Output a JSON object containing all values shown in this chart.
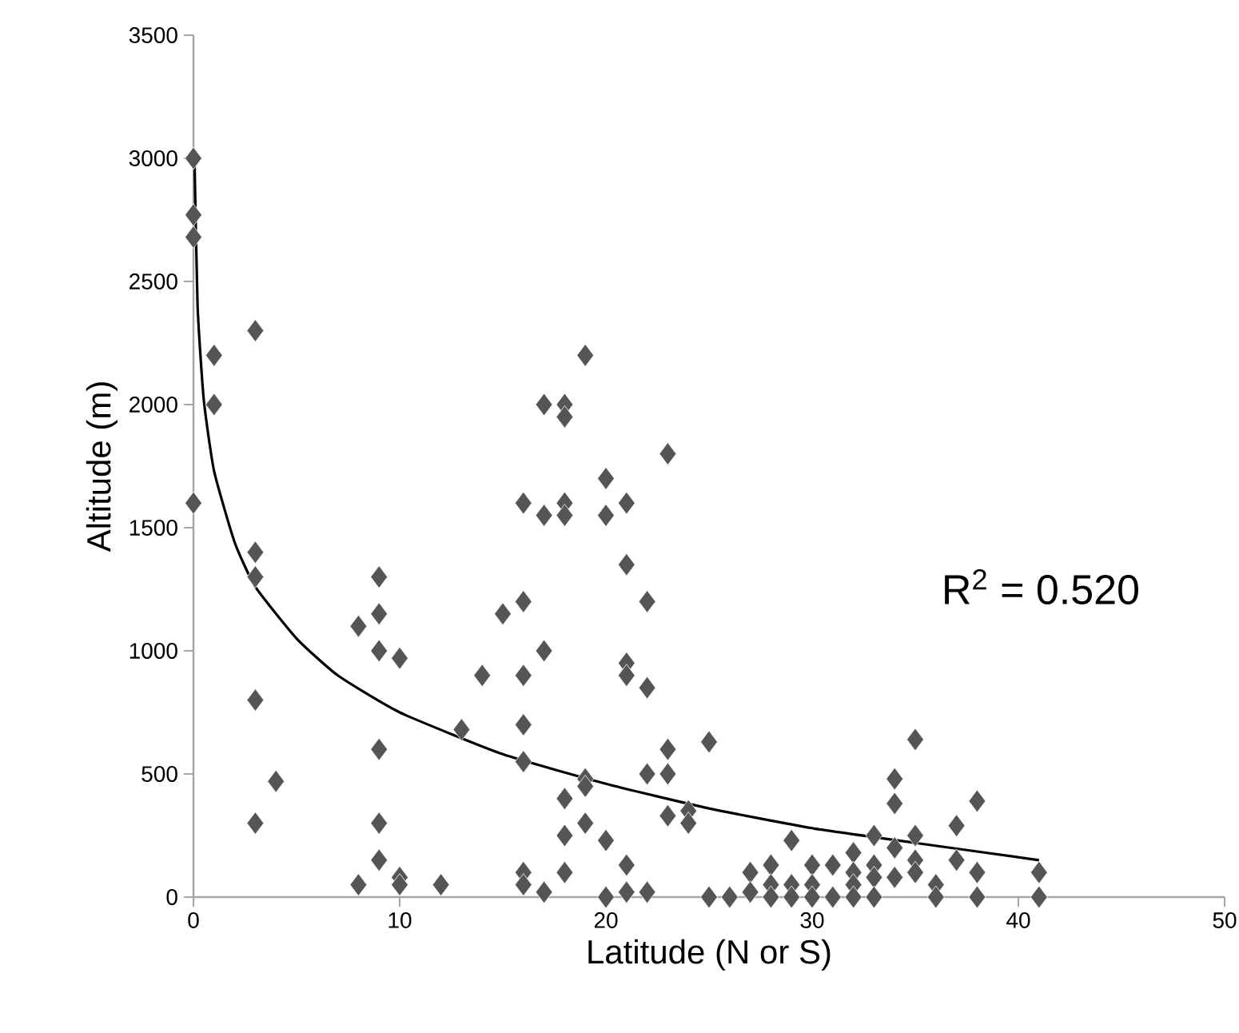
{
  "chart_data": {
    "type": "scatter",
    "xlabel": "Latitude (N or S)",
    "ylabel": "Altitude (m)",
    "annotations": [
      "R$^{2}$ = 0.520"
    ],
    "xlim": [
      0,
      50
    ],
    "xticks": [
      0,
      10,
      20,
      30,
      40,
      50
    ],
    "ylim": [
      0,
      3500
    ],
    "yticks": [
      0,
      500,
      1000,
      1500,
      2000,
      2500,
      3000,
      3500
    ],
    "grid": false,
    "marker": "diamond",
    "series": [
      {
        "color": "#555555",
        "x": [
          0,
          0,
          0,
          0,
          1,
          1,
          3,
          3,
          3,
          3,
          3,
          4,
          8,
          8,
          9,
          9,
          9,
          9,
          9,
          9,
          10,
          10,
          10,
          12,
          13,
          14,
          15,
          16,
          16,
          16,
          16,
          16,
          16,
          16,
          17,
          17,
          17,
          17,
          18,
          18,
          18,
          18,
          18,
          18,
          18,
          19,
          19,
          19,
          19,
          20,
          20,
          20,
          20,
          21,
          21,
          21,
          21,
          21,
          21,
          22,
          22,
          22,
          22,
          23,
          23,
          23,
          23,
          24,
          24,
          25,
          25,
          26,
          27,
          27,
          28,
          28,
          28,
          29,
          29,
          29,
          30,
          30,
          30,
          31,
          31,
          32,
          32,
          32,
          32,
          33,
          33,
          33,
          33,
          34,
          34,
          34,
          34,
          35,
          35,
          35,
          35,
          36,
          36,
          37,
          37,
          38,
          38,
          38,
          41,
          41
        ],
        "values": [
          3000,
          2770,
          2680,
          1600,
          2200,
          2000,
          2300,
          1400,
          1300,
          800,
          300,
          470,
          50,
          1100,
          1300,
          1150,
          1000,
          600,
          300,
          150,
          970,
          80,
          50,
          50,
          680,
          900,
          1150,
          1600,
          1200,
          900,
          700,
          550,
          100,
          50,
          2000,
          1550,
          1000,
          20,
          2000,
          1950,
          1600,
          1550,
          400,
          250,
          100,
          2200,
          480,
          450,
          300,
          1700,
          1550,
          230,
          0,
          1600,
          1350,
          950,
          900,
          130,
          20,
          1200,
          850,
          500,
          20,
          1800,
          600,
          500,
          330,
          350,
          300,
          630,
          0,
          0,
          100,
          20,
          130,
          50,
          0,
          230,
          50,
          0,
          130,
          50,
          0,
          130,
          0,
          180,
          100,
          50,
          0,
          250,
          130,
          80,
          0,
          480,
          380,
          200,
          80,
          640,
          250,
          150,
          100,
          50,
          0,
          290,
          150,
          390,
          100,
          0,
          100,
          0
        ]
      },
      {
        "type": "line",
        "color": "#000000",
        "line_style": "solid",
        "marker": "none",
        "x": [
          0.05,
          0.2,
          0.5,
          1,
          2,
          3,
          5,
          7,
          10,
          15,
          20,
          25,
          30,
          35,
          41
        ],
        "values": [
          3000,
          2400,
          2020,
          1730,
          1440,
          1260,
          1050,
          900,
          750,
          580,
          460,
          360,
          280,
          220,
          150
        ]
      }
    ]
  }
}
